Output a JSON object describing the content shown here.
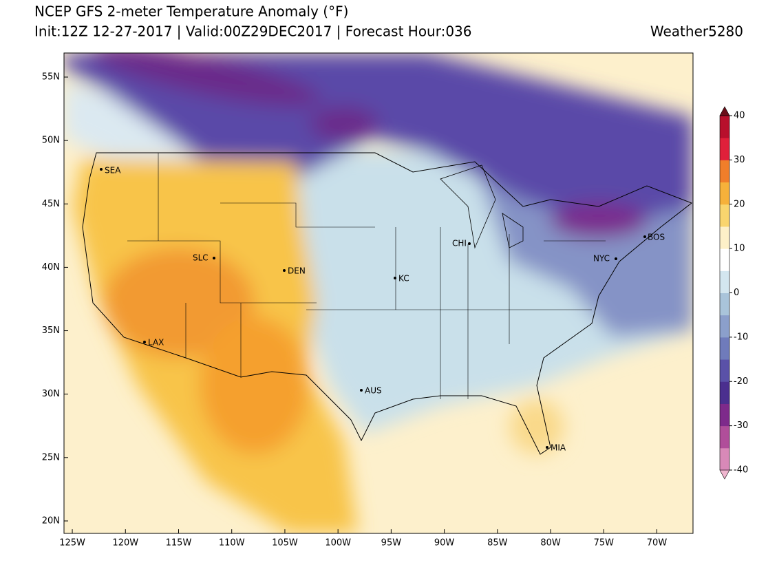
{
  "header": {
    "title": "NCEP GFS 2-meter Temperature Anomaly (°F)",
    "subtitle": "Init:12Z 12-27-2017 | Valid:00Z29DEC2017 | Forecast Hour:036",
    "brand": "Weather5280"
  },
  "map": {
    "xlim": [
      -125.78,
      -66.6
    ],
    "ylim": [
      19.02,
      56.9
    ],
    "xticks": [
      {
        "value": -125,
        "label": "125W"
      },
      {
        "value": -120,
        "label": "120W"
      },
      {
        "value": -115,
        "label": "115W"
      },
      {
        "value": -110,
        "label": "110W"
      },
      {
        "value": -105,
        "label": "105W"
      },
      {
        "value": -100,
        "label": "100W"
      },
      {
        "value": -95,
        "label": "95W"
      },
      {
        "value": -90,
        "label": "90W"
      },
      {
        "value": -85,
        "label": "85W"
      },
      {
        "value": -80,
        "label": "80W"
      },
      {
        "value": -75,
        "label": "75W"
      },
      {
        "value": -70,
        "label": "70W"
      }
    ],
    "yticks": [
      {
        "value": 20,
        "label": "20N"
      },
      {
        "value": 25,
        "label": "25N"
      },
      {
        "value": 30,
        "label": "30N"
      },
      {
        "value": 35,
        "label": "35N"
      },
      {
        "value": 40,
        "label": "40N"
      },
      {
        "value": 45,
        "label": "45N"
      },
      {
        "value": 50,
        "label": "50N"
      },
      {
        "value": 55,
        "label": "55N"
      }
    ],
    "cities": [
      "SEA",
      "SLC",
      "DEN",
      "KC",
      "CHI",
      "NYC",
      "BOS",
      "LAX",
      "AUS",
      "MIA"
    ]
  },
  "colorbar": {
    "lim": [
      -40,
      40
    ],
    "ticks": [
      -40,
      -30,
      -20,
      -10,
      0,
      10,
      20,
      30,
      40
    ],
    "colors": [
      "#f0b6cf",
      "#d889b8",
      "#b04e9a",
      "#7e2a8b",
      "#4b2f8f",
      "#5a51a8",
      "#6f7bbb",
      "#8b9fcb",
      "#a9c4da",
      "#d3e6ef",
      "#ffffff",
      "#fdf0c8",
      "#f9d56e",
      "#f6b13a",
      "#f07e2a",
      "#e0203a",
      "#b8102c",
      "#6b0f1a"
    ]
  }
}
